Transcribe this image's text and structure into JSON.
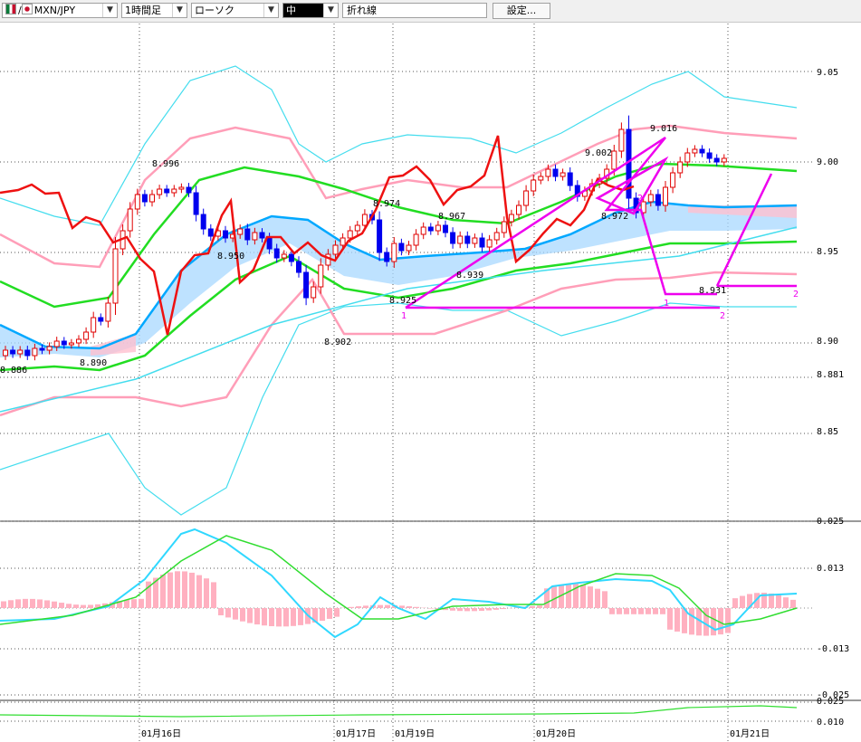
{
  "toolbar": {
    "symbol": "MXN/JPY",
    "timeframe": "1時間足",
    "chart_style": "ローソク",
    "indicator": "中",
    "drawing": "折れ線",
    "settings_label": "設定..."
  },
  "colors": {
    "candle_up": "#e00000",
    "candle_down": "#0000ee",
    "ma_short": "#00a8ff",
    "bb_1sigma": "#22dd22",
    "bb_2sigma": "#ff9eb8",
    "bb_3sigma": "#44ddee",
    "rci": "#ee1111",
    "drawing": "#ee00ee",
    "cloud_blue": "#a8d8ff",
    "cloud_pink": "#ffc0d0",
    "macd": "#30d8ff",
    "signal": "#30dd30",
    "histogram": "#ffb0c0"
  },
  "chart_data": [
    {
      "type": "candlestick",
      "symbol": "MXN/JPY",
      "x_tick_labels": [
        "01月16日",
        "01月17日",
        "01月19日",
        "01月20日",
        "01月21日"
      ],
      "y_tick_labels": [
        "9.05",
        "9.00",
        "8.95",
        "8.90",
        "8.881",
        "8.85"
      ],
      "ylim": [
        8.83,
        9.08
      ],
      "grid": true,
      "price_annotations": [
        {
          "label": "8.886",
          "value": 8.886
        },
        {
          "label": "8.890",
          "value": 8.89
        },
        {
          "label": "8.996",
          "value": 8.996
        },
        {
          "label": "8.950",
          "value": 8.95
        },
        {
          "label": "8.902",
          "value": 8.902
        },
        {
          "label": "8.974",
          "value": 8.974
        },
        {
          "label": "8.925",
          "value": 8.925
        },
        {
          "label": "8.967",
          "value": 8.967
        },
        {
          "label": "8.939",
          "value": 8.939
        },
        {
          "label": "9.002",
          "value": 9.002
        },
        {
          "label": "9.016",
          "value": 9.016
        },
        {
          "label": "8.972",
          "value": 8.972
        },
        {
          "label": "8.931",
          "value": 8.931
        }
      ],
      "wave_labels": [
        "1",
        "2",
        "1",
        "2",
        "2"
      ]
    },
    {
      "type": "line",
      "panel": "MACD",
      "y_tick_labels": [
        "0.025",
        "0.013",
        "-0.013",
        "-0.025"
      ],
      "ylim": [
        -0.025,
        0.025
      ]
    },
    {
      "type": "line",
      "panel": "sub-indicator",
      "y_tick_labels": [
        "0.025",
        "0.010"
      ]
    }
  ]
}
